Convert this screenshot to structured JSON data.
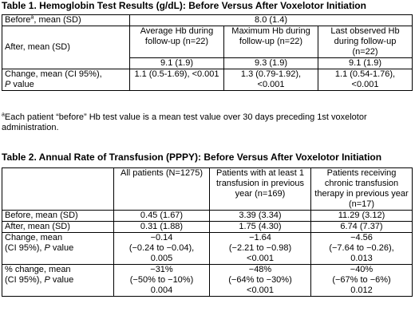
{
  "table1": {
    "title": "Table 1. Hemoglobin Test Results (g/dL): Before Versus After Voxelotor Initiation",
    "before_label": "Before",
    "before_sup": "a",
    "before_label_suffix": ", mean (SD)",
    "before_value": "8.0 (1.4)",
    "after_label": "After, mean (SD)",
    "columns": [
      "Average Hb during follow-up (n=22)",
      "Maximum Hb during follow-up (n=22)",
      "Last observed Hb during follow-up (n=22)"
    ],
    "after_values": [
      "9.1 (1.9)",
      "9.3 (1.9)",
      "9.1 (1.9)"
    ],
    "change_label_1": "Change, mean (CI 95%),",
    "change_label_p": "P",
    "change_label_2": " value",
    "change_values": [
      "1.1 (0.5-1.69), <0.001",
      "1.3 (0.79-1.92), <0.001",
      "1.1 (0.54-1.76), <0.001"
    ],
    "footnote_sup": "a",
    "footnote": "Each patient “before” Hb test value is a mean test value over 30 days preceding 1st voxelotor administration."
  },
  "table2": {
    "title": "Table 2. Annual Rate of Transfusion (PPPY): Before Versus After Voxelotor Initiation",
    "columns": [
      "All patients (N=1275)",
      "Patients with at least 1 transfusion in previous year (n=169)",
      "Patients receiving chronic transfusion therapy in previous year (n=17)"
    ],
    "rows": [
      {
        "label": "Before, mean (SD)",
        "values": [
          "0.45 (1.67)",
          "3.39 (3.34)",
          "11.29 (3.12)"
        ]
      },
      {
        "label": "After, mean (SD)",
        "values": [
          "0.31 (1.88)",
          "1.75 (4.30)",
          "6.74 (7.37)"
        ]
      }
    ],
    "change_label_1": "Change, mean",
    "change_label_2": "(CI 95%), ",
    "change_label_p": "P",
    "change_label_3": " value",
    "change_values": [
      [
        "−0.14",
        "(−0.24 to −0.04),",
        "0.005"
      ],
      [
        "−1.64",
        "(−2.21 to −0.98)",
        "<0.001"
      ],
      [
        "−4.56",
        "(−7.64 to −0.26),",
        "0.013"
      ]
    ],
    "pct_label_1": "% change, mean",
    "pct_label_2": "(CI 95%), ",
    "pct_label_p": "P",
    "pct_label_3": " value",
    "pct_values": [
      [
        "−31%",
        "(−50% to −10%)",
        "0.004"
      ],
      [
        "−48%",
        "(−64% to −30%)",
        "<0.001"
      ],
      [
        "−40%",
        "(−67% to −6%)",
        "0.012"
      ]
    ]
  }
}
